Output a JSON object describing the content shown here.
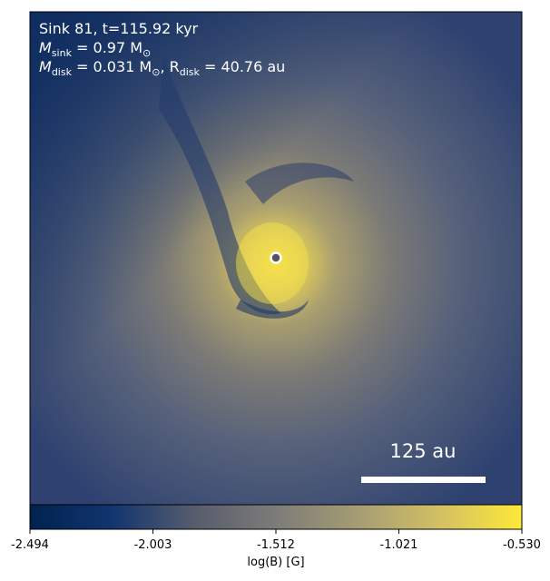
{
  "chart_data": {
    "type": "image",
    "annotations": [
      [
        "Sink 81, t=115.92 kyr"
      ],
      [
        "M",
        "sink",
        " = 0.97 M",
        "⊙"
      ],
      [
        "M",
        "disk",
        " = 0.031 M",
        "⊙",
        ", R",
        "disk",
        " = 40.76 au"
      ]
    ],
    "scale_bar_label": "125 au",
    "colorbar": {
      "label": "log(B) [G]",
      "lim": [
        -2.494,
        -0.53
      ],
      "ticks": [
        -2.494,
        -2.003,
        -1.512,
        -1.021,
        {
          "value": -0.53,
          "label": "-0.530"
        }
      ],
      "colors": [
        "#00224e",
        "#123570",
        "#575c6d",
        "#7d7c78",
        "#a59c74",
        "#d3c064",
        "#fee838"
      ]
    }
  }
}
